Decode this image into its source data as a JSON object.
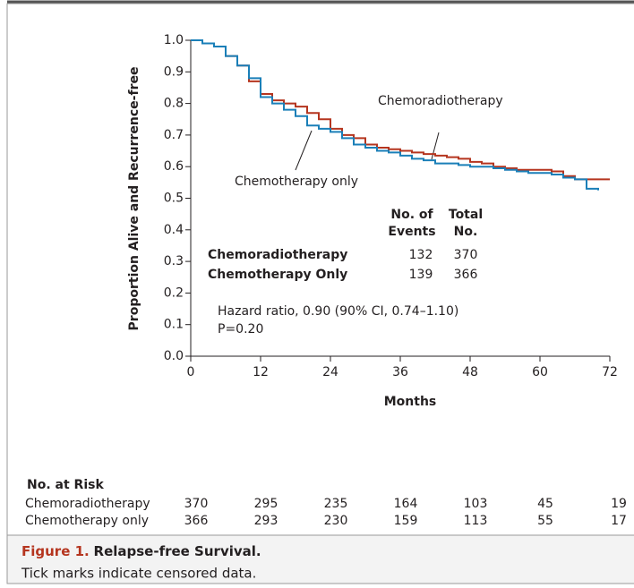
{
  "chart_data": {
    "type": "line",
    "y_label": "Proportion Alive and Recurrence-free",
    "x_label": "Months",
    "xlim": [
      0,
      72
    ],
    "ylim": [
      0,
      1
    ],
    "xticks": [
      0,
      12,
      24,
      36,
      48,
      60,
      72
    ],
    "yticks": [
      {
        "value": 0,
        "label": "0.0"
      },
      0.1,
      0.2,
      0.3,
      0.4,
      0.5,
      0.6,
      0.7,
      0.8,
      0.9,
      {
        "value": 1,
        "label": "1.0"
      }
    ],
    "x": [
      0,
      2,
      4,
      6,
      8,
      10,
      12,
      14,
      16,
      18,
      20,
      22,
      24,
      26,
      28,
      30,
      32,
      34,
      36,
      38,
      40,
      42,
      44,
      46,
      48,
      50,
      52,
      54,
      56,
      58,
      60,
      62,
      64,
      66,
      68,
      70,
      72
    ],
    "series": [
      {
        "name": "Chemoradiotherapy",
        "color": "#b5351f",
        "values": [
          1.0,
          0.99,
          0.98,
          0.95,
          0.92,
          0.87,
          0.83,
          0.81,
          0.8,
          0.79,
          0.77,
          0.75,
          0.72,
          0.7,
          0.69,
          0.67,
          0.66,
          0.655,
          0.65,
          0.645,
          0.64,
          0.635,
          0.63,
          0.625,
          0.615,
          0.61,
          0.6,
          0.595,
          0.59,
          0.59,
          0.59,
          0.585,
          0.57,
          0.56,
          0.56,
          0.56,
          0.56
        ]
      },
      {
        "name": "Chemotherapy only",
        "color": "#1a7fb8",
        "values": [
          1.0,
          0.99,
          0.98,
          0.95,
          0.92,
          0.88,
          0.82,
          0.8,
          0.78,
          0.76,
          0.73,
          0.72,
          0.71,
          0.69,
          0.67,
          0.66,
          0.65,
          0.645,
          0.635,
          0.625,
          0.62,
          0.61,
          0.61,
          0.605,
          0.6,
          0.6,
          0.595,
          0.59,
          0.585,
          0.58,
          0.58,
          0.575,
          0.565,
          0.56,
          0.53,
          0.525,
          null
        ]
      }
    ],
    "events_table": {
      "header_events": [
        "No. of",
        "Events"
      ],
      "header_total": [
        "Total",
        "No."
      ],
      "rows": [
        {
          "name": "Chemoradiotherapy",
          "events": 132,
          "total": 370
        },
        {
          "name": "Chemotherapy Only",
          "events": 139,
          "total": 366
        }
      ]
    },
    "hazard_text": "Hazard ratio, 0.90 (90% CI, 0.74–1.10)",
    "p_text": "P=0.20"
  },
  "at_risk": {
    "title": "No. at Risk",
    "rows": [
      {
        "label": "Chemoradiotherapy",
        "values": [
          370,
          295,
          235,
          164,
          103,
          45,
          19
        ]
      },
      {
        "label": "Chemotherapy only",
        "values": [
          366,
          293,
          230,
          159,
          113,
          55,
          17
        ]
      }
    ]
  },
  "figure": {
    "label": "Figure 1.",
    "title": "Relapse-free Survival.",
    "note": "Tick marks indicate censored data."
  }
}
